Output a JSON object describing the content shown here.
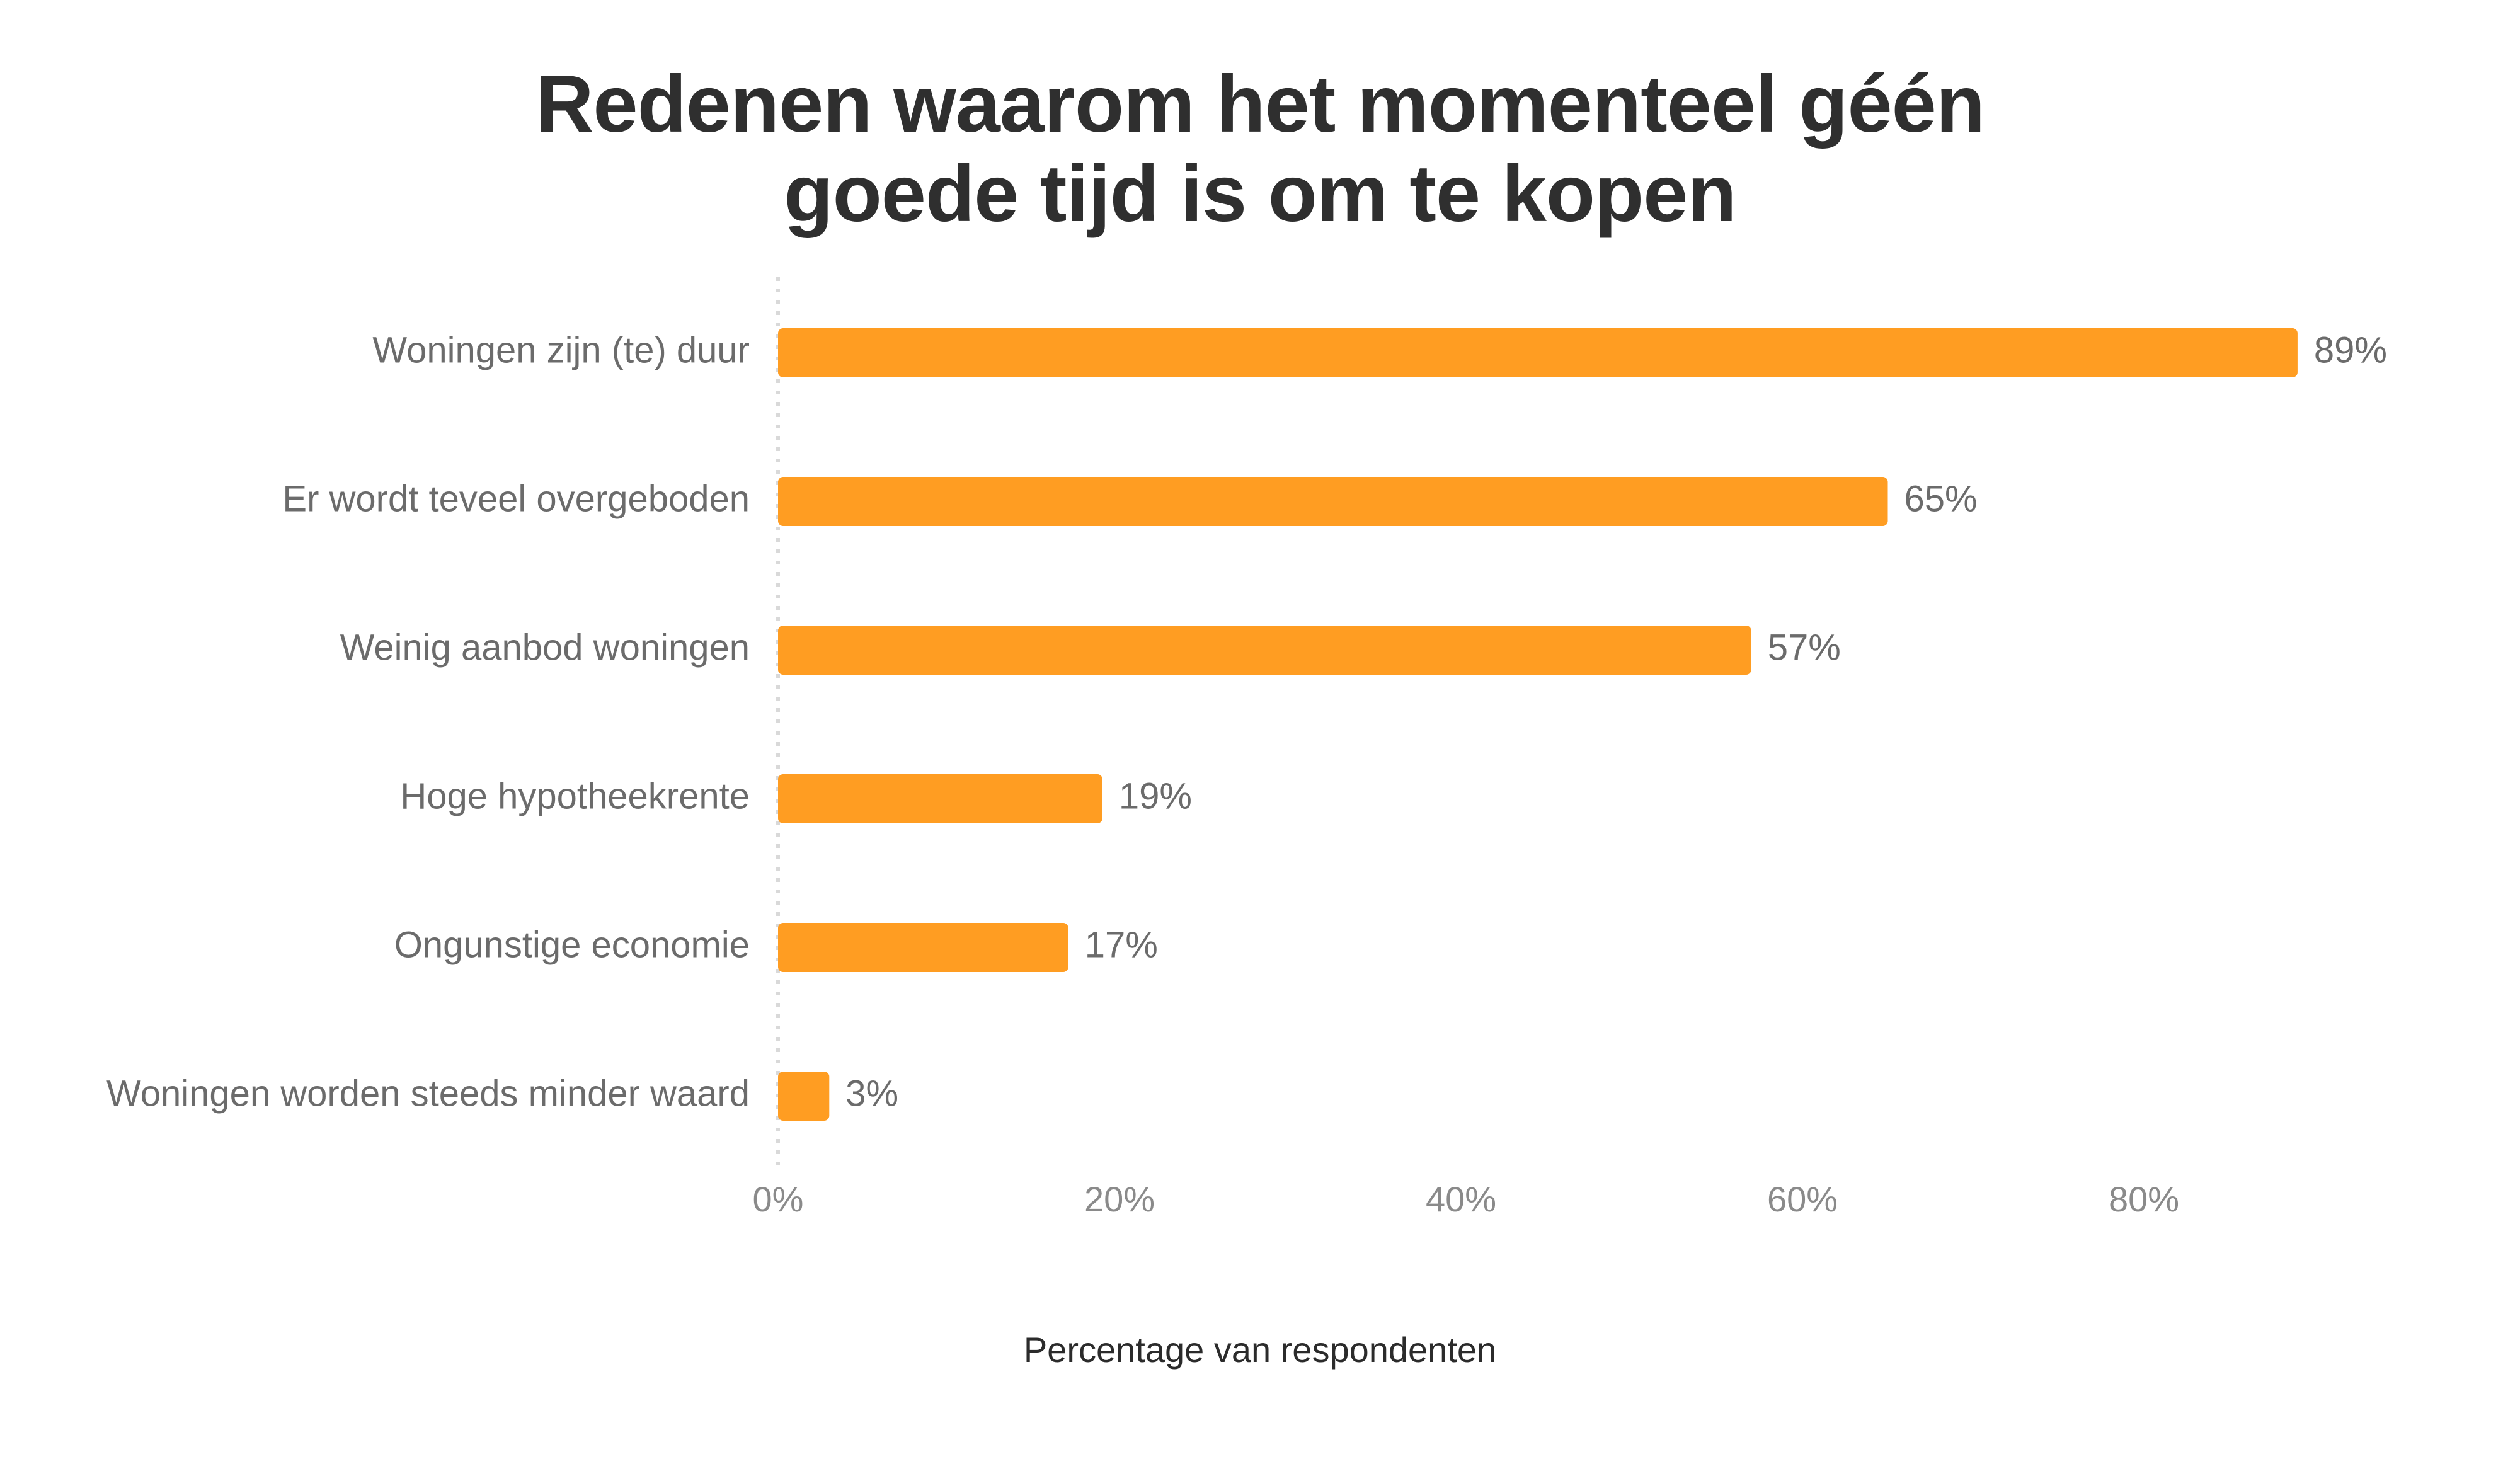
{
  "chart_data": {
    "type": "bar",
    "orientation": "horizontal",
    "title_lines": [
      "Redenen waarom het momenteel géén",
      "goede tijd is om te kopen"
    ],
    "xlabel": "Percentage van respondenten",
    "ylabel": "",
    "categories": [
      "Woningen zijn (te) duur",
      "Er wordt teveel overgeboden",
      "Weinig aanbod woningen",
      "Hoge hypotheekrente",
      "Ongunstige economie",
      "Woningen worden steeds minder waard"
    ],
    "values": [
      89,
      65,
      57,
      19,
      17,
      3
    ],
    "value_labels": [
      "89%",
      "65%",
      "57%",
      "19%",
      "17%",
      "3%"
    ],
    "xticks": [
      0,
      20,
      40,
      60,
      80
    ],
    "xtick_labels": [
      "0%",
      "20%",
      "40%",
      "60%",
      "80%"
    ],
    "xlim": [
      0,
      100
    ],
    "bar_color": "#FF9D22",
    "grid": false,
    "legend": "none"
  }
}
